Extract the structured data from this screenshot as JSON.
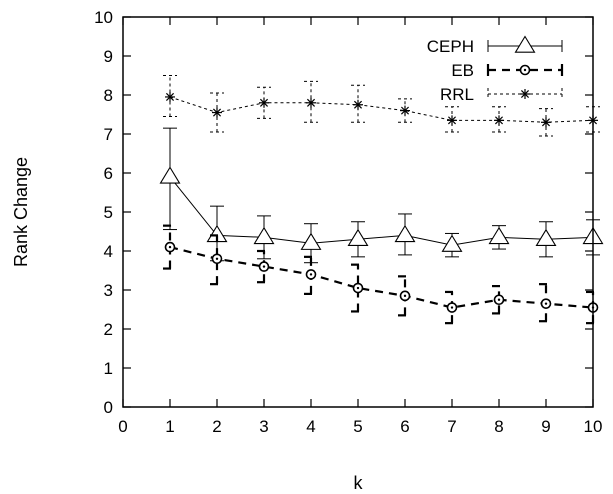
{
  "chart_data": {
    "type": "line",
    "xlabel": "k",
    "ylabel": "Rank Change",
    "xlim": [
      0,
      10
    ],
    "ylim": [
      0,
      10
    ],
    "xticks": [
      0,
      1,
      2,
      3,
      4,
      5,
      6,
      7,
      8,
      9,
      10
    ],
    "yticks": [
      0,
      1,
      2,
      3,
      4,
      5,
      6,
      7,
      8,
      9,
      10
    ],
    "grid": false,
    "legend_position": "top-right",
    "x": [
      1,
      2,
      3,
      4,
      5,
      6,
      7,
      8,
      9,
      10
    ],
    "series": [
      {
        "name": "CEPH",
        "marker": "triangle",
        "line_style": "solid",
        "color": "#000000",
        "values": [
          5.9,
          4.4,
          4.35,
          4.2,
          4.3,
          4.4,
          4.15,
          4.35,
          4.3,
          4.35
        ],
        "error_low": [
          4.55,
          3.75,
          3.8,
          3.7,
          3.85,
          3.9,
          3.85,
          4.05,
          3.85,
          3.9
        ],
        "error_high": [
          7.15,
          5.15,
          4.9,
          4.7,
          4.75,
          4.95,
          4.45,
          4.65,
          4.75,
          4.8
        ]
      },
      {
        "name": "EB",
        "marker": "circle",
        "line_style": "dashed-bold",
        "color": "#000000",
        "values": [
          4.1,
          3.8,
          3.6,
          3.4,
          3.05,
          2.85,
          2.55,
          2.75,
          2.65,
          2.55
        ],
        "error_low": [
          3.55,
          3.15,
          3.2,
          2.9,
          2.45,
          2.35,
          2.15,
          2.4,
          2.2,
          2.15
        ],
        "error_high": [
          4.65,
          4.4,
          4.0,
          3.85,
          3.65,
          3.35,
          2.95,
          3.1,
          3.15,
          2.95
        ]
      },
      {
        "name": "RRL",
        "marker": "asterisk",
        "line_style": "dotted",
        "color": "#000000",
        "values": [
          7.95,
          7.55,
          7.8,
          7.8,
          7.75,
          7.6,
          7.35,
          7.35,
          7.3,
          7.35
        ],
        "error_low": [
          7.45,
          7.05,
          7.4,
          7.3,
          7.3,
          7.3,
          7.05,
          7.05,
          6.95,
          7.05
        ],
        "error_high": [
          8.5,
          8.05,
          8.2,
          8.35,
          8.25,
          7.9,
          7.7,
          7.7,
          7.65,
          7.7
        ]
      }
    ]
  }
}
